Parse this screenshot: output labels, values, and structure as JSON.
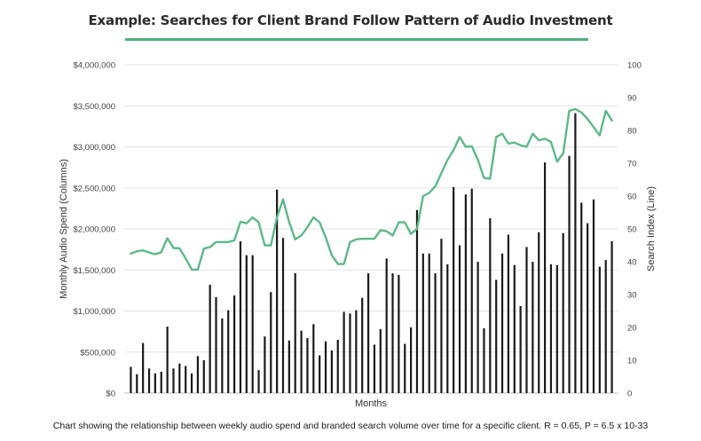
{
  "page": {
    "title": "Example: Searches for Client Brand Follow Pattern of Audio Investment",
    "caption": "Chart showing the relationship between weekly audio spend and branded search volume over time for a specific client. R = 0.65, P = 6.5 x 10-33"
  },
  "chart_data": {
    "type": "bar+line",
    "title": "Example: Searches for Client Brand Follow Pattern of Audio Investment",
    "xlabel": "Months",
    "ylabel_left": "Monthly Audio Spend (Columns)",
    "ylabel_right": "Search Index (Line)",
    "ylim_left": [
      0,
      4000000
    ],
    "ylim_right": [
      0,
      100
    ],
    "left_ticks": [
      "$0",
      "$500,000",
      "$1,000,000",
      "$1,500,000",
      "$2,000,000",
      "$2,500,000",
      "$3,000,000",
      "$3,500,000",
      "$4,000,000"
    ],
    "right_ticks": [
      "0",
      "10",
      "20",
      "30",
      "40",
      "50",
      "60",
      "70",
      "80",
      "90",
      "100"
    ],
    "grid": true,
    "colors": {
      "bars": "#1a1a1a",
      "line": "#5cb88a",
      "grid": "#e3e3e3",
      "title_rule": "#4caf7d"
    },
    "series": [
      {
        "type": "bar",
        "axis": "left",
        "values": [
          320000,
          230000,
          610000,
          300000,
          240000,
          260000,
          810000,
          300000,
          360000,
          330000,
          240000,
          450000,
          400000,
          1320000,
          1170000,
          910000,
          1010000,
          1190000,
          1850000,
          1680000,
          1680000,
          280000,
          690000,
          1230000,
          2480000,
          1890000,
          640000,
          1460000,
          760000,
          670000,
          840000,
          460000,
          630000,
          520000,
          650000,
          990000,
          970000,
          1010000,
          1160000,
          1460000,
          590000,
          780000,
          1640000,
          1460000,
          1440000,
          600000,
          800000,
          2230000,
          1700000,
          1700000,
          1460000,
          1880000,
          1570000,
          2510000,
          1800000,
          2420000,
          2490000,
          1600000,
          790000,
          2130000,
          1380000,
          1700000,
          1930000,
          1560000,
          1060000,
          1780000,
          1600000,
          1960000,
          2810000,
          1570000,
          1560000,
          1950000,
          2890000,
          3410000,
          2320000,
          2070000,
          2360000,
          1540000,
          1620000,
          1850000
        ]
      },
      {
        "type": "line",
        "axis": "right",
        "values": [
          42.5,
          43.2,
          43.5,
          42.8,
          42.3,
          42.9,
          47.2,
          44.2,
          44.1,
          41.0,
          37.6,
          37.6,
          44.0,
          44.5,
          46.0,
          46.0,
          46.0,
          46.5,
          52.2,
          51.7,
          53.5,
          52.0,
          45.0,
          45.0,
          53.5,
          59.0,
          52.0,
          46.8,
          48.0,
          50.5,
          53.5,
          52.0,
          47.5,
          42.0,
          39.3,
          39.3,
          46.0,
          46.8,
          47.0,
          47.0,
          47.0,
          49.6,
          49.3,
          48.0,
          52.0,
          52.0,
          48.5,
          50.0,
          60.0,
          61.0,
          63.0,
          67.0,
          71.0,
          74.0,
          78.0,
          75.0,
          75.2,
          71.0,
          65.5,
          65.3,
          78.0,
          79.0,
          76.0,
          76.3,
          75.5,
          75.0,
          79.0,
          77.0,
          77.5,
          76.5,
          70.5,
          73.0,
          86.0,
          86.5,
          85.5,
          83.5,
          81.0,
          78.5,
          86.0,
          83.0
        ]
      }
    ]
  }
}
